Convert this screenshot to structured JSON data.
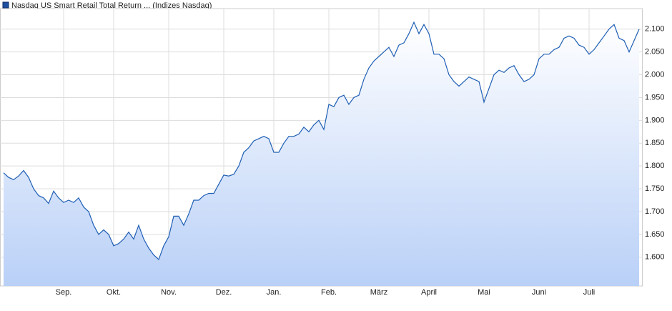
{
  "chart_data": {
    "type": "area",
    "series": [
      {
        "name": "Nasdaq US Smart Retail Total Return ... (Indizes Nasdaq)",
        "color": "#1f5fb4",
        "values": [
          1.785,
          1.775,
          1.77,
          1.778,
          1.79,
          1.775,
          1.75,
          1.735,
          1.73,
          1.718,
          1.745,
          1.73,
          1.72,
          1.725,
          1.72,
          1.73,
          1.71,
          1.7,
          1.67,
          1.65,
          1.66,
          1.65,
          1.625,
          1.63,
          1.64,
          1.655,
          1.64,
          1.67,
          1.64,
          1.62,
          1.605,
          1.595,
          1.625,
          1.645,
          1.69,
          1.69,
          1.67,
          1.695,
          1.725,
          1.725,
          1.735,
          1.74,
          1.74,
          1.76,
          1.78,
          1.778,
          1.782,
          1.8,
          1.83,
          1.84,
          1.855,
          1.86,
          1.865,
          1.86,
          1.83,
          1.83,
          1.85,
          1.865,
          1.865,
          1.87,
          1.885,
          1.875,
          1.89,
          1.9,
          1.88,
          1.935,
          1.93,
          1.95,
          1.955,
          1.935,
          1.95,
          1.955,
          1.99,
          2.015,
          2.03,
          2.04,
          2.05,
          2.06,
          2.04,
          2.065,
          2.07,
          2.09,
          2.115,
          2.09,
          2.11,
          2.09,
          2.045,
          2.045,
          2.035,
          2.0,
          1.985,
          1.975,
          1.985,
          1.995,
          1.99,
          1.985,
          1.94,
          1.97,
          2.0,
          2.01,
          2.005,
          2.015,
          2.02,
          2.0,
          1.985,
          1.99,
          2.0,
          2.035,
          2.045,
          2.045,
          2.055,
          2.06,
          2.08,
          2.085,
          2.08,
          2.065,
          2.06,
          2.045,
          2.055,
          2.07,
          2.085,
          2.1,
          2.11,
          2.08,
          2.075,
          2.05,
          2.075,
          2.1
        ]
      }
    ],
    "categories": [
      null,
      null,
      null,
      null,
      null,
      null,
      null,
      null,
      null,
      null,
      null,
      null,
      "Sep.",
      null,
      null,
      null,
      null,
      null,
      null,
      null,
      null,
      null,
      "Okt.",
      null,
      null,
      null,
      null,
      null,
      null,
      null,
      null,
      null,
      null,
      "Nov.",
      null,
      null,
      null,
      null,
      null,
      null,
      null,
      null,
      null,
      null,
      "Dez.",
      null,
      null,
      null,
      null,
      null,
      null,
      null,
      null,
      null,
      "Jan.",
      null,
      null,
      null,
      null,
      null,
      null,
      null,
      null,
      null,
      null,
      "Feb.",
      null,
      null,
      null,
      null,
      null,
      null,
      null,
      null,
      null,
      "März",
      null,
      null,
      null,
      null,
      null,
      null,
      null,
      null,
      null,
      "April",
      null,
      null,
      null,
      null,
      null,
      null,
      null,
      null,
      null,
      null,
      "Mai",
      null,
      null,
      null,
      null,
      null,
      null,
      null,
      null,
      null,
      null,
      "Juni",
      null,
      null,
      null,
      null,
      null,
      null,
      null,
      null,
      null,
      "Juli",
      null,
      null,
      null,
      null,
      null,
      null,
      null,
      null,
      null,
      null
    ],
    "ylim": [
      1.537,
      2.145
    ],
    "yticks": [
      {
        "value": 1.6,
        "label": "1.600"
      },
      {
        "value": 1.65,
        "label": "1.650"
      },
      {
        "value": 1.7,
        "label": "1.700"
      },
      {
        "value": 1.75,
        "label": "1.750"
      },
      {
        "value": 1.8,
        "label": "1.800"
      },
      {
        "value": 1.85,
        "label": "1.850"
      },
      {
        "value": 1.9,
        "label": "1.900"
      },
      {
        "value": 1.95,
        "label": "1.950"
      },
      {
        "value": 2.0,
        "label": "2.000"
      },
      {
        "value": 2.05,
        "label": "2.050"
      },
      {
        "value": 2.1,
        "label": "2.100"
      }
    ],
    "grid": true
  }
}
